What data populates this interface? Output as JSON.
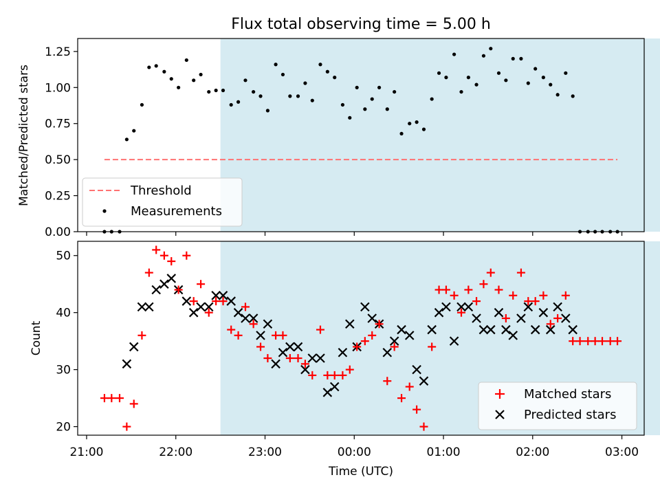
{
  "title": "Flux total observing time = 5.00 h",
  "chart_data": [
    {
      "type": "scatter",
      "ylabel": "Matched/Predicted stars",
      "ylim": [
        0,
        1.34
      ],
      "yticks": [
        0.0,
        0.25,
        0.5,
        0.75,
        1.0,
        1.25
      ],
      "ytick_labels": [
        "0.00",
        "0.25",
        "0.50",
        "0.75",
        "1.00",
        "1.25"
      ],
      "shaded_region": {
        "x0": 1.5,
        "x1": 6.46,
        "color": "#add8e6"
      },
      "threshold": {
        "name": "Threshold",
        "y": 0.5,
        "x0": 0.2,
        "x1": 5.95,
        "color": "#ff7272"
      },
      "legend": {
        "position": "bottom-left",
        "entries": [
          "Threshold",
          "Measurements"
        ]
      },
      "series": [
        {
          "name": "Measurements",
          "color": "#000000",
          "x": [
            0.2,
            0.28,
            0.37,
            0.45,
            0.53,
            0.62,
            0.7,
            0.78,
            0.87,
            0.95,
            1.03,
            1.12,
            1.2,
            1.28,
            1.37,
            1.45,
            1.53,
            1.62,
            1.7,
            1.78,
            1.87,
            1.95,
            2.03,
            2.12,
            2.2,
            2.28,
            2.37,
            2.45,
            2.53,
            2.62,
            2.7,
            2.78,
            2.87,
            2.95,
            3.03,
            3.12,
            3.2,
            3.28,
            3.37,
            3.45,
            3.53,
            3.62,
            3.7,
            3.78,
            3.87,
            3.95,
            4.03,
            4.12,
            4.2,
            4.28,
            4.37,
            4.45,
            4.53,
            4.62,
            4.7,
            4.78,
            4.87,
            4.95,
            5.03,
            5.12,
            5.2,
            5.28,
            5.37,
            5.45,
            5.53,
            5.62,
            5.7,
            5.78,
            5.87,
            5.95
          ],
          "y": [
            0,
            0,
            0,
            0.64,
            0.7,
            0.88,
            1.14,
            1.15,
            1.11,
            1.06,
            1.0,
            1.19,
            1.05,
            1.09,
            0.97,
            0.98,
            0.98,
            0.88,
            0.9,
            1.05,
            0.97,
            0.94,
            0.84,
            1.16,
            1.09,
            0.94,
            0.94,
            1.03,
            0.91,
            1.16,
            1.11,
            1.07,
            0.88,
            0.79,
            1.0,
            0.85,
            0.92,
            1.0,
            0.85,
            0.97,
            0.68,
            0.75,
            0.76,
            0.71,
            0.92,
            1.1,
            1.07,
            1.23,
            0.97,
            1.07,
            1.02,
            1.22,
            1.27,
            1.1,
            1.05,
            1.2,
            1.2,
            1.03,
            1.13,
            1.07,
            1.02,
            0.95,
            1.1,
            0.94,
            0,
            0,
            0,
            0,
            0,
            0
          ]
        }
      ]
    },
    {
      "type": "scatter",
      "xlabel": "Time (UTC)",
      "ylabel": "Count",
      "ylim": [
        18.5,
        52.5
      ],
      "yticks": [
        20,
        30,
        40,
        50
      ],
      "ytick_labels": [
        "20",
        "30",
        "40",
        "50"
      ],
      "xlim": [
        -0.1,
        6.25
      ],
      "xticks": [
        0,
        1,
        2,
        3,
        4,
        5,
        6
      ],
      "xtick_labels": [
        "21:00",
        "22:00",
        "23:00",
        "00:00",
        "01:00",
        "02:00",
        "03:00"
      ],
      "shaded_region": {
        "x0": 1.5,
        "x1": 6.46,
        "color": "#add8e6"
      },
      "legend": {
        "position": "bottom-right",
        "entries": [
          "Matched stars",
          "Predicted stars"
        ]
      },
      "series": [
        {
          "name": "Matched stars",
          "marker": "plus",
          "color": "#ff0000",
          "x": [
            0.2,
            0.28,
            0.37,
            0.45,
            0.53,
            0.62,
            0.7,
            0.78,
            0.87,
            0.95,
            1.03,
            1.12,
            1.2,
            1.28,
            1.37,
            1.45,
            1.53,
            1.62,
            1.7,
            1.78,
            1.87,
            1.95,
            2.03,
            2.12,
            2.2,
            2.28,
            2.37,
            2.45,
            2.53,
            2.62,
            2.7,
            2.78,
            2.87,
            2.95,
            3.03,
            3.12,
            3.2,
            3.28,
            3.37,
            3.45,
            3.53,
            3.62,
            3.7,
            3.78,
            3.87,
            3.95,
            4.03,
            4.12,
            4.2,
            4.28,
            4.37,
            4.45,
            4.53,
            4.62,
            4.7,
            4.78,
            4.87,
            4.95,
            5.03,
            5.12,
            5.2,
            5.28,
            5.37,
            5.45,
            5.53,
            5.62,
            5.7,
            5.78,
            5.87,
            5.95
          ],
          "y": [
            25,
            25,
            25,
            20,
            24,
            36,
            47,
            51,
            50,
            49,
            44,
            50,
            42,
            45,
            40,
            42,
            42,
            37,
            36,
            41,
            38,
            34,
            32,
            36,
            36,
            32,
            32,
            31,
            29,
            37,
            29,
            29,
            29,
            30,
            34,
            35,
            36,
            38,
            28,
            34,
            25,
            27,
            23,
            20,
            34,
            44,
            44,
            43,
            40,
            44,
            42,
            45,
            47,
            44,
            39,
            43,
            47,
            42,
            42,
            43,
            38,
            39,
            43,
            35,
            35,
            35,
            35,
            35,
            35,
            35
          ]
        },
        {
          "name": "Predicted stars",
          "marker": "x",
          "color": "#000000",
          "x": [
            0.45,
            0.53,
            0.62,
            0.7,
            0.78,
            0.87,
            0.95,
            1.03,
            1.12,
            1.2,
            1.28,
            1.37,
            1.45,
            1.53,
            1.62,
            1.7,
            1.78,
            1.87,
            1.95,
            2.03,
            2.12,
            2.2,
            2.28,
            2.37,
            2.45,
            2.53,
            2.62,
            2.7,
            2.78,
            2.87,
            2.95,
            3.03,
            3.12,
            3.2,
            3.28,
            3.37,
            3.45,
            3.53,
            3.62,
            3.7,
            3.78,
            3.87,
            3.95,
            4.03,
            4.12,
            4.2,
            4.28,
            4.37,
            4.45,
            4.53,
            4.62,
            4.7,
            4.78,
            4.87,
            4.95,
            5.03,
            5.12,
            5.2,
            5.28,
            5.37,
            5.45
          ],
          "y": [
            31,
            34,
            41,
            41,
            44,
            45,
            46,
            44,
            42,
            40,
            41,
            41,
            43,
            43,
            42,
            40,
            39,
            39,
            36,
            38,
            31,
            33,
            34,
            34,
            30,
            32,
            32,
            26,
            27,
            33,
            38,
            34,
            41,
            39,
            38,
            33,
            35,
            37,
            36,
            30,
            28,
            37,
            40,
            41,
            35,
            41,
            41,
            39,
            37,
            37,
            40,
            37,
            36,
            39,
            41,
            37,
            40,
            37,
            41,
            39,
            37
          ]
        }
      ]
    }
  ]
}
